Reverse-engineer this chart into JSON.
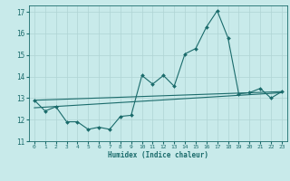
{
  "title": "",
  "xlabel": "Humidex (Indice chaleur)",
  "ylabel": "",
  "xlim": [
    -0.5,
    23.5
  ],
  "ylim": [
    11,
    17.3
  ],
  "yticks": [
    11,
    12,
    13,
    14,
    15,
    16,
    17
  ],
  "xticks": [
    0,
    1,
    2,
    3,
    4,
    5,
    6,
    7,
    8,
    9,
    10,
    11,
    12,
    13,
    14,
    15,
    16,
    17,
    18,
    19,
    20,
    21,
    22,
    23
  ],
  "bg_color": "#c8eaea",
  "line_color": "#1a6b6b",
  "grid_color": "#afd4d4",
  "curve_x": [
    0,
    1,
    2,
    3,
    4,
    5,
    6,
    7,
    8,
    9,
    10,
    11,
    12,
    13,
    14,
    15,
    16,
    17,
    18,
    19,
    20,
    21,
    22,
    23
  ],
  "curve_y": [
    12.9,
    12.4,
    12.6,
    11.9,
    11.9,
    11.55,
    11.65,
    11.55,
    12.15,
    12.2,
    14.05,
    13.65,
    14.05,
    13.55,
    15.05,
    15.3,
    16.3,
    17.05,
    15.8,
    13.2,
    13.25,
    13.45,
    13.0,
    13.3
  ],
  "line1_x": [
    0,
    23
  ],
  "line1_y": [
    12.9,
    13.3
  ],
  "line2_x": [
    0,
    23
  ],
  "line2_y": [
    12.55,
    13.25
  ]
}
